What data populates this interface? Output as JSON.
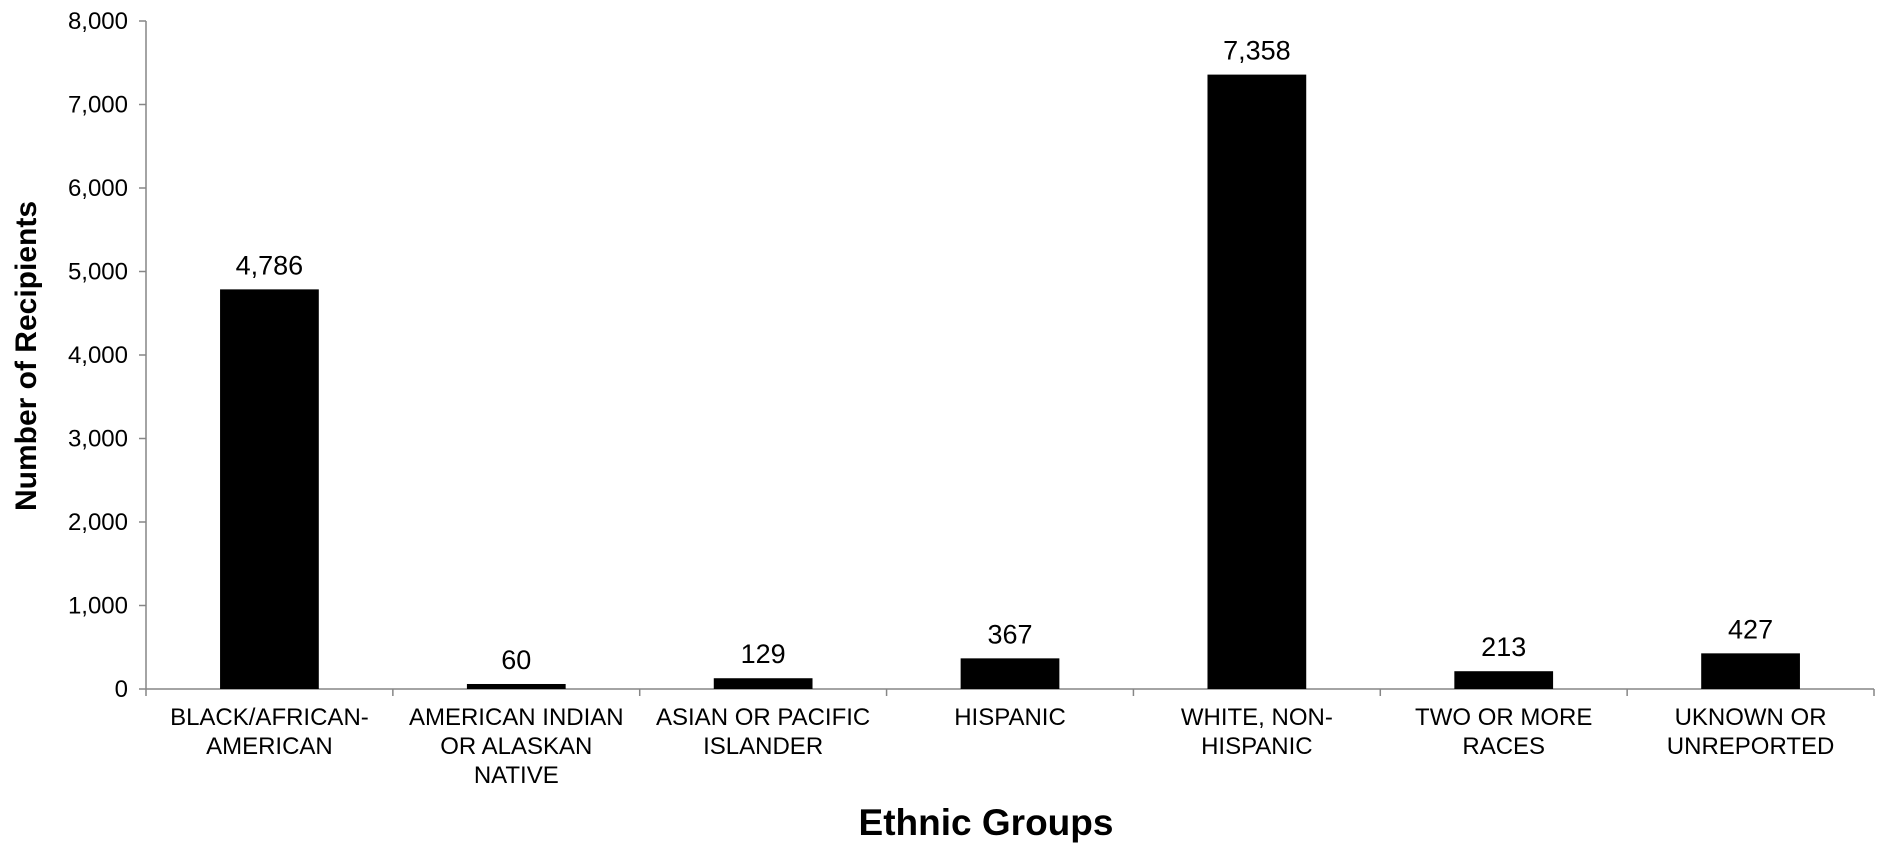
{
  "colors": {
    "bar": "#000000",
    "axis": "#868686",
    "text": "#000000",
    "background": "#ffffff"
  },
  "chart_data": {
    "type": "bar",
    "title": "",
    "xlabel": "Ethnic Groups",
    "ylabel": "Number of Recipients",
    "ylim": [
      0,
      8000
    ],
    "yticks": [
      0,
      1000,
      2000,
      3000,
      4000,
      5000,
      6000,
      7000,
      8000
    ],
    "ytick_labels": [
      "0",
      "1,000",
      "2,000",
      "3,000",
      "4,000",
      "5,000",
      "6,000",
      "7,000",
      "8,000"
    ],
    "grid": false,
    "legend": "none",
    "categories": [
      "BLACK/AFRICAN-AMERICAN",
      "AMERICAN INDIAN OR ALASKAN NATIVE",
      "ASIAN OR PACIFIC ISLANDER",
      "HISPANIC",
      "WHITE, NON-HISPANIC",
      "TWO OR MORE RACES",
      "UKNOWN OR UNREPORTED"
    ],
    "category_label_lines": [
      [
        "BLACK/AFRICAN-",
        "AMERICAN"
      ],
      [
        "AMERICAN INDIAN",
        "OR ALASKAN",
        "NATIVE"
      ],
      [
        "ASIAN OR PACIFIC",
        "ISLANDER"
      ],
      [
        "HISPANIC"
      ],
      [
        "WHITE, NON-",
        "HISPANIC"
      ],
      [
        "TWO OR MORE",
        "RACES"
      ],
      [
        "UKNOWN OR",
        "UNREPORTED"
      ]
    ],
    "values": [
      4786,
      60,
      129,
      367,
      7358,
      213,
      427
    ],
    "value_labels": [
      "4,786",
      "60",
      "129",
      "367",
      "7,358",
      "213",
      "427"
    ]
  }
}
